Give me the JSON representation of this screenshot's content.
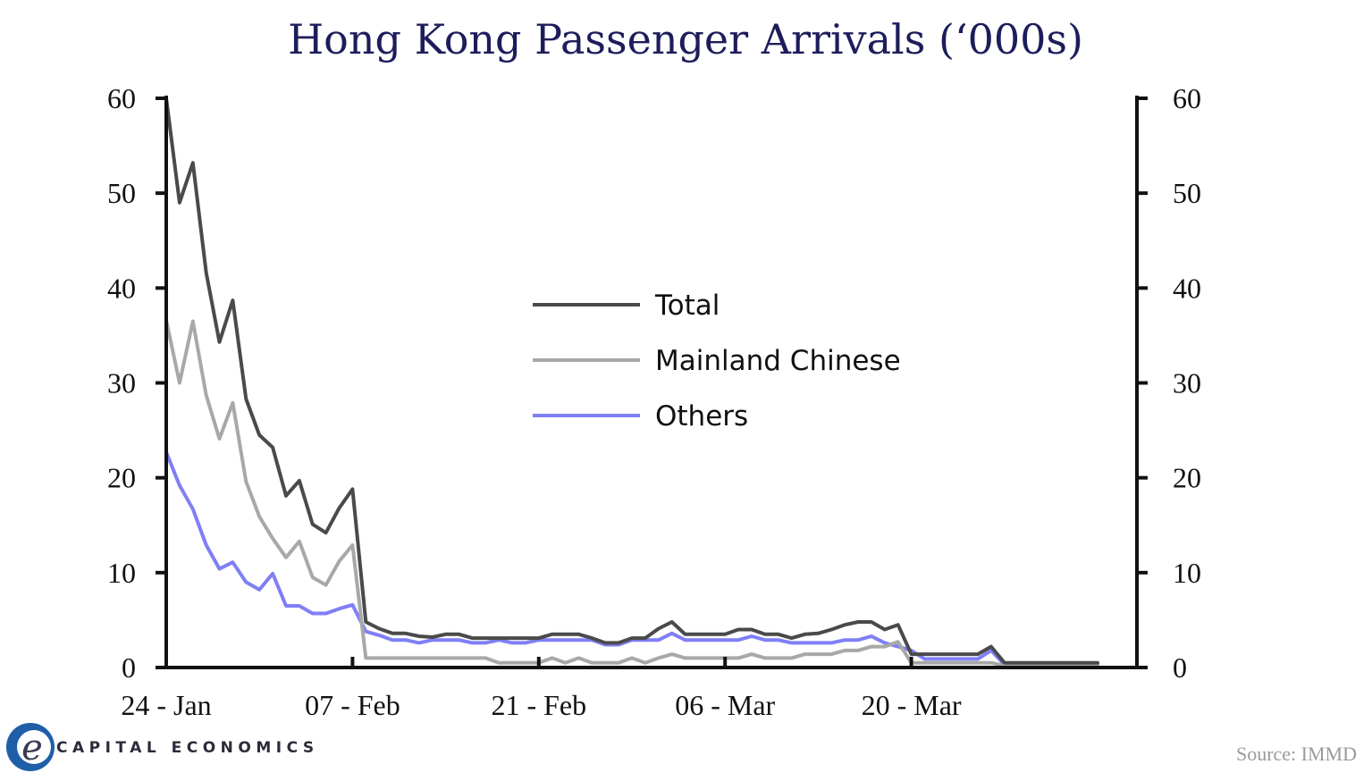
{
  "chart_data": {
    "type": "line",
    "title": "Hong Kong Passenger Arrivals (‘000s)",
    "xlabel": "",
    "ylabel": "",
    "ylim": [
      0,
      60
    ],
    "y_ticks": [
      "0",
      "10",
      "20",
      "30",
      "40",
      "50",
      "60"
    ],
    "y_ticks_right": [
      "0",
      "10",
      "20",
      "30",
      "40",
      "50",
      "60"
    ],
    "x_ticks": [
      "24 - Jan",
      "07 - Feb",
      "21 - Feb",
      "06 - Mar",
      "20 - Mar"
    ],
    "x": [
      "24 - Jan",
      "25 - Jan",
      "26 - Jan",
      "27 - Jan",
      "28 - Jan",
      "29 - Jan",
      "30 - Jan",
      "31 - Jan",
      "01 - Feb",
      "02 - Feb",
      "03 - Feb",
      "04 - Feb",
      "05 - Feb",
      "06 - Feb",
      "07 - Feb",
      "08 - Feb",
      "09 - Feb",
      "10 - Feb",
      "11 - Feb",
      "12 - Feb",
      "13 - Feb",
      "14 - Feb",
      "15 - Feb",
      "16 - Feb",
      "17 - Feb",
      "18 - Feb",
      "19 - Feb",
      "20 - Feb",
      "21 - Feb",
      "22 - Feb",
      "23 - Feb",
      "24 - Feb",
      "25 - Feb",
      "26 - Feb",
      "27 - Feb",
      "28 - Feb",
      "29 - Feb",
      "01 - Mar",
      "02 - Mar",
      "03 - Mar",
      "04 - Mar",
      "05 - Mar",
      "06 - Mar",
      "07 - Mar",
      "08 - Mar",
      "09 - Mar",
      "10 - Mar",
      "11 - Mar",
      "12 - Mar",
      "13 - Mar",
      "14 - Mar",
      "15 - Mar",
      "16 - Mar",
      "17 - Mar",
      "18 - Mar",
      "19 - Mar",
      "20 - Mar",
      "21 - Mar",
      "22 - Mar",
      "23 - Mar",
      "24 - Mar",
      "25 - Mar",
      "26 - Mar",
      "27 - Mar",
      "28 - Mar",
      "29 - Mar",
      "30 - Mar",
      "31 - Mar",
      "01 - Apr",
      "02 - Apr",
      "03 - Apr"
    ],
    "series": [
      {
        "name": "Total",
        "color": "#4a4a4a",
        "values": [
          60,
          49,
          53.2,
          41.6,
          34.3,
          38.7,
          28.3,
          24.5,
          23.2,
          18.1,
          19.7,
          15.1,
          14.2,
          16.8,
          18.8,
          4.8,
          4.1,
          3.6,
          3.6,
          3.3,
          3.2,
          3.5,
          3.5,
          3.1,
          3.1,
          3.1,
          3.1,
          3.1,
          3.1,
          3.5,
          3.5,
          3.5,
          3.1,
          2.6,
          2.6,
          3.1,
          3.1,
          4.1,
          4.8,
          3.5,
          3.5,
          3.5,
          3.5,
          4.0,
          4.0,
          3.5,
          3.5,
          3.1,
          3.5,
          3.6,
          4.0,
          4.5,
          4.8,
          4.8,
          4.0,
          4.5,
          1.4,
          1.4,
          1.4,
          1.4,
          1.4,
          1.4,
          2.2,
          0.5,
          0.5,
          0.5,
          0.5,
          0.5,
          0.5,
          0.5,
          0.5
        ]
      },
      {
        "name": "Mainland Chinese",
        "color": "#a8a8a8",
        "values": [
          36.6,
          30,
          36.5,
          28.7,
          24.1,
          27.9,
          19.6,
          15.9,
          13.6,
          11.6,
          13.3,
          9.5,
          8.7,
          11.2,
          12.9,
          1.0,
          1.0,
          1.0,
          1.0,
          1.0,
          1.0,
          1.0,
          1.0,
          1.0,
          1.0,
          0.5,
          0.5,
          0.5,
          0.5,
          1.0,
          0.5,
          1.0,
          0.5,
          0.5,
          0.5,
          1.0,
          0.5,
          1.0,
          1.4,
          1.0,
          1.0,
          1.0,
          1.0,
          1.0,
          1.4,
          1.0,
          1.0,
          1.0,
          1.4,
          1.4,
          1.4,
          1.8,
          1.8,
          2.2,
          2.2,
          2.7,
          0.5,
          0.5,
          0.5,
          0.5,
          0.5,
          0.5,
          0.5,
          0.2,
          0.2,
          0.2,
          0.2,
          0.2,
          0.2,
          0.2,
          0.3
        ]
      },
      {
        "name": "Others",
        "color": "#7f7ff5",
        "values": [
          22.7,
          19.2,
          16.7,
          12.9,
          10.4,
          11.1,
          9.0,
          8.2,
          9.9,
          6.5,
          6.5,
          5.7,
          5.7,
          6.2,
          6.6,
          3.8,
          3.4,
          2.9,
          2.9,
          2.6,
          2.9,
          2.9,
          2.9,
          2.6,
          2.6,
          2.9,
          2.6,
          2.6,
          2.9,
          2.9,
          2.9,
          2.9,
          2.9,
          2.4,
          2.4,
          2.9,
          2.9,
          2.9,
          3.6,
          2.9,
          2.9,
          2.9,
          2.9,
          2.9,
          3.3,
          2.9,
          2.9,
          2.6,
          2.6,
          2.6,
          2.6,
          2.9,
          2.9,
          3.3,
          2.6,
          2.2,
          1.8,
          0.9,
          0.9,
          0.9,
          0.9,
          0.9,
          1.8,
          0.3,
          0.3,
          0.3,
          0.3,
          0.3,
          0.3,
          0.3,
          0.3
        ]
      }
    ],
    "grid": false,
    "legend_position": "center"
  },
  "source": "Source: IMMD",
  "brand": {
    "name": "CAPITAL ECONOMICS",
    "logo_colors": {
      "ring": "#1f5fa8",
      "letter": "#3a3a52"
    }
  }
}
